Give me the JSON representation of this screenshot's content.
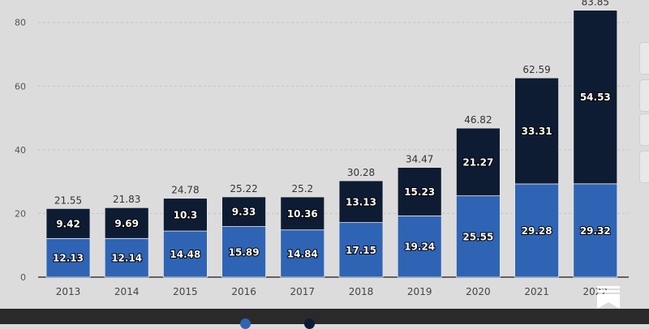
{
  "chart_data": {
    "type": "bar",
    "stacked": true,
    "categories": [
      "2013",
      "2014",
      "2015",
      "2016",
      "2017",
      "2018",
      "2019",
      "2020",
      "2021",
      "2022"
    ],
    "series": [
      {
        "values": [
          12.13,
          12.14,
          14.48,
          15.89,
          14.84,
          17.15,
          19.24,
          25.55,
          29.28,
          29.32
        ],
        "color": "#2f64b5"
      },
      {
        "values": [
          9.42,
          9.69,
          10.3,
          9.33,
          10.36,
          13.13,
          15.23,
          21.27,
          33.31,
          54.53
        ],
        "color": "#0e1c33"
      }
    ],
    "totals": [
      21.55,
      21.83,
      24.78,
      25.22,
      25.2,
      30.28,
      34.47,
      46.82,
      62.59,
      83.85
    ],
    "yticks": [
      0,
      20,
      40,
      60,
      80
    ],
    "ylim": [
      0,
      84
    ],
    "grid": true,
    "legend_position": "bottom",
    "colors": {
      "background": "#dcdcdc",
      "series_1": "#2f64b5",
      "series_2": "#0e1c33",
      "grid": "#c4c4c4"
    }
  },
  "icons": {
    "logo": "statista-flag-icon"
  }
}
